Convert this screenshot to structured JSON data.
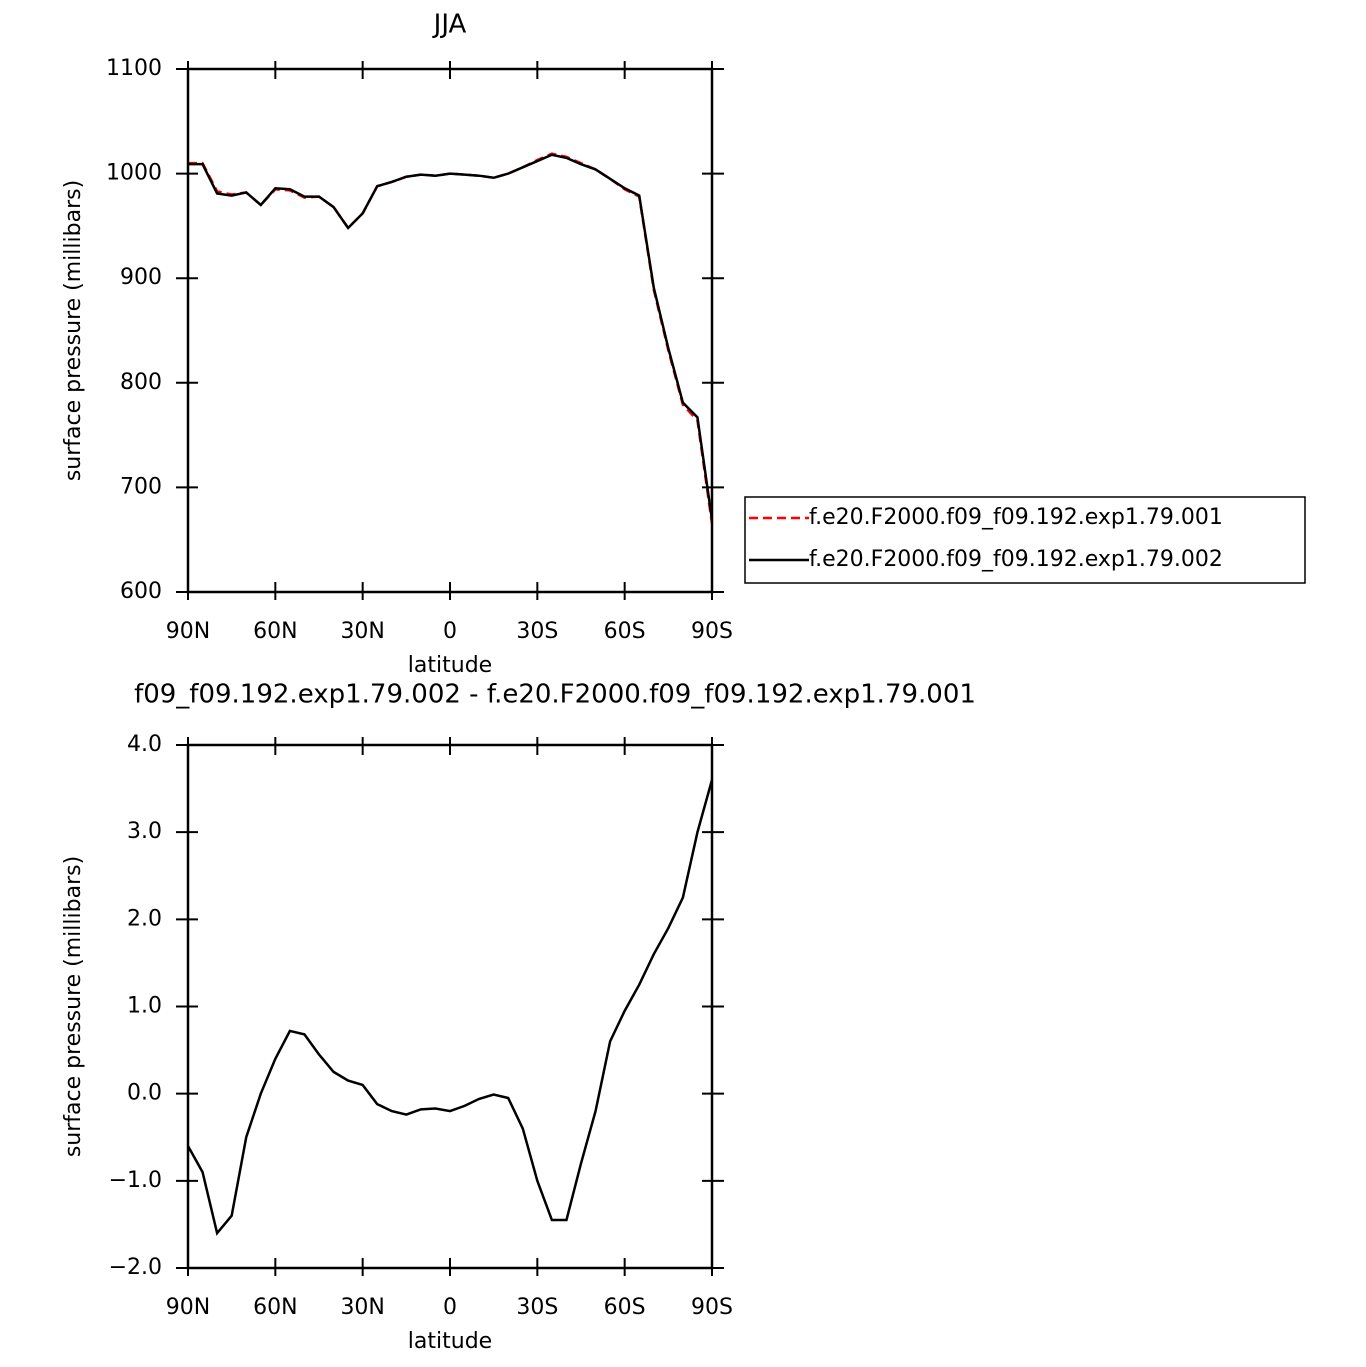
{
  "chart_data": [
    {
      "type": "line",
      "title": "JJA",
      "xlabel": "latitude",
      "ylabel": "surface pressure (millibars)",
      "x": [
        90,
        85,
        80,
        75,
        70,
        65,
        60,
        55,
        50,
        45,
        40,
        35,
        30,
        25,
        20,
        15,
        10,
        5,
        0,
        -5,
        -10,
        -15,
        -20,
        -25,
        -30,
        -35,
        -40,
        -45,
        -50,
        -55,
        -60,
        -65,
        -70,
        -75,
        -80,
        -85,
        -90
      ],
      "series": [
        {
          "name": "f.e20.F2000.f09_f09.192.exp1.79.001",
          "color": "#ff0000",
          "linestyle": "dashed",
          "values": [
            1010,
            1010,
            983,
            980,
            982,
            970,
            985,
            984,
            977,
            978,
            968,
            948,
            962,
            988,
            992,
            997,
            999,
            998,
            1000,
            999,
            998,
            996,
            1000,
            1006,
            1013,
            1019,
            1016,
            1010,
            1004,
            995,
            985,
            978,
            889,
            831,
            779,
            764,
            665
          ]
        },
        {
          "name": "f.e20.F2000.f09_f09.192.exp1.79.002",
          "color": "#000000",
          "linestyle": "solid",
          "values": [
            1009,
            1009,
            981,
            979,
            982,
            970,
            986,
            985,
            978,
            978,
            968,
            948,
            962,
            988,
            992,
            997,
            999,
            998,
            1000,
            999,
            998,
            996,
            1000,
            1006,
            1012,
            1018,
            1015,
            1009,
            1004,
            995,
            986,
            979,
            891,
            833,
            781,
            767,
            669
          ]
        }
      ],
      "xlim": [
        90,
        -90
      ],
      "xticks": [
        {
          "value": 90,
          "label": "90N"
        },
        {
          "value": 60,
          "label": "60N"
        },
        {
          "value": 30,
          "label": "30N"
        },
        0,
        {
          "value": -30,
          "label": "30S"
        },
        {
          "value": -60,
          "label": "60S"
        },
        {
          "value": -90,
          "label": "90S"
        }
      ],
      "ylim": [
        600,
        1100
      ],
      "yticks": [
        600,
        700,
        800,
        900,
        1000,
        1100
      ],
      "legend": "right"
    },
    {
      "type": "line",
      "title": "f09_f09.192.exp1.79.002 - f.e20.F2000.f09_f09.192.exp1.79.001",
      "xlabel": "latitude",
      "ylabel": "surface pressure (millibars)",
      "x": [
        90,
        85,
        80,
        75,
        70,
        65,
        60,
        55,
        50,
        45,
        40,
        35,
        30,
        25,
        20,
        15,
        10,
        5,
        0,
        -5,
        -10,
        -15,
        -20,
        -25,
        -30,
        -35,
        -40,
        -45,
        -50,
        -55,
        -60,
        -65,
        -70,
        -75,
        -80,
        -85,
        -90
      ],
      "series": [
        {
          "color": "#000000",
          "linestyle": "solid",
          "values": [
            -0.6,
            -0.9,
            -1.6,
            -1.4,
            -0.5,
            0,
            0.4,
            0.72,
            0.68,
            0.45,
            0.25,
            0.15,
            0.1,
            -0.12,
            -0.2,
            -0.24,
            -0.18,
            -0.17,
            -0.2,
            -0.14,
            -0.06,
            -0.01,
            -0.05,
            -0.4,
            -1.0,
            -1.45,
            -1.45,
            -0.8,
            -0.2,
            0.6,
            0.95,
            1.25,
            1.6,
            1.9,
            2.25,
            3.0,
            3.6
          ]
        }
      ],
      "xlim": [
        90,
        -90
      ],
      "xticks": [
        {
          "value": 90,
          "label": "90N"
        },
        {
          "value": 60,
          "label": "60N"
        },
        {
          "value": 30,
          "label": "30N"
        },
        0,
        {
          "value": -30,
          "label": "30S"
        },
        {
          "value": -60,
          "label": "60S"
        },
        {
          "value": -90,
          "label": "90S"
        }
      ],
      "ylim": [
        -2,
        4
      ],
      "yticks": [
        {
          "value": -2,
          "label": "−2.0"
        },
        {
          "value": -1,
          "label": "−1.0"
        },
        {
          "value": 0,
          "label": "0.0"
        },
        {
          "value": 1,
          "label": "1.0"
        },
        {
          "value": 2,
          "label": "2.0"
        },
        {
          "value": 3,
          "label": "3.0"
        },
        {
          "value": 4,
          "label": "4.0"
        }
      ]
    }
  ]
}
